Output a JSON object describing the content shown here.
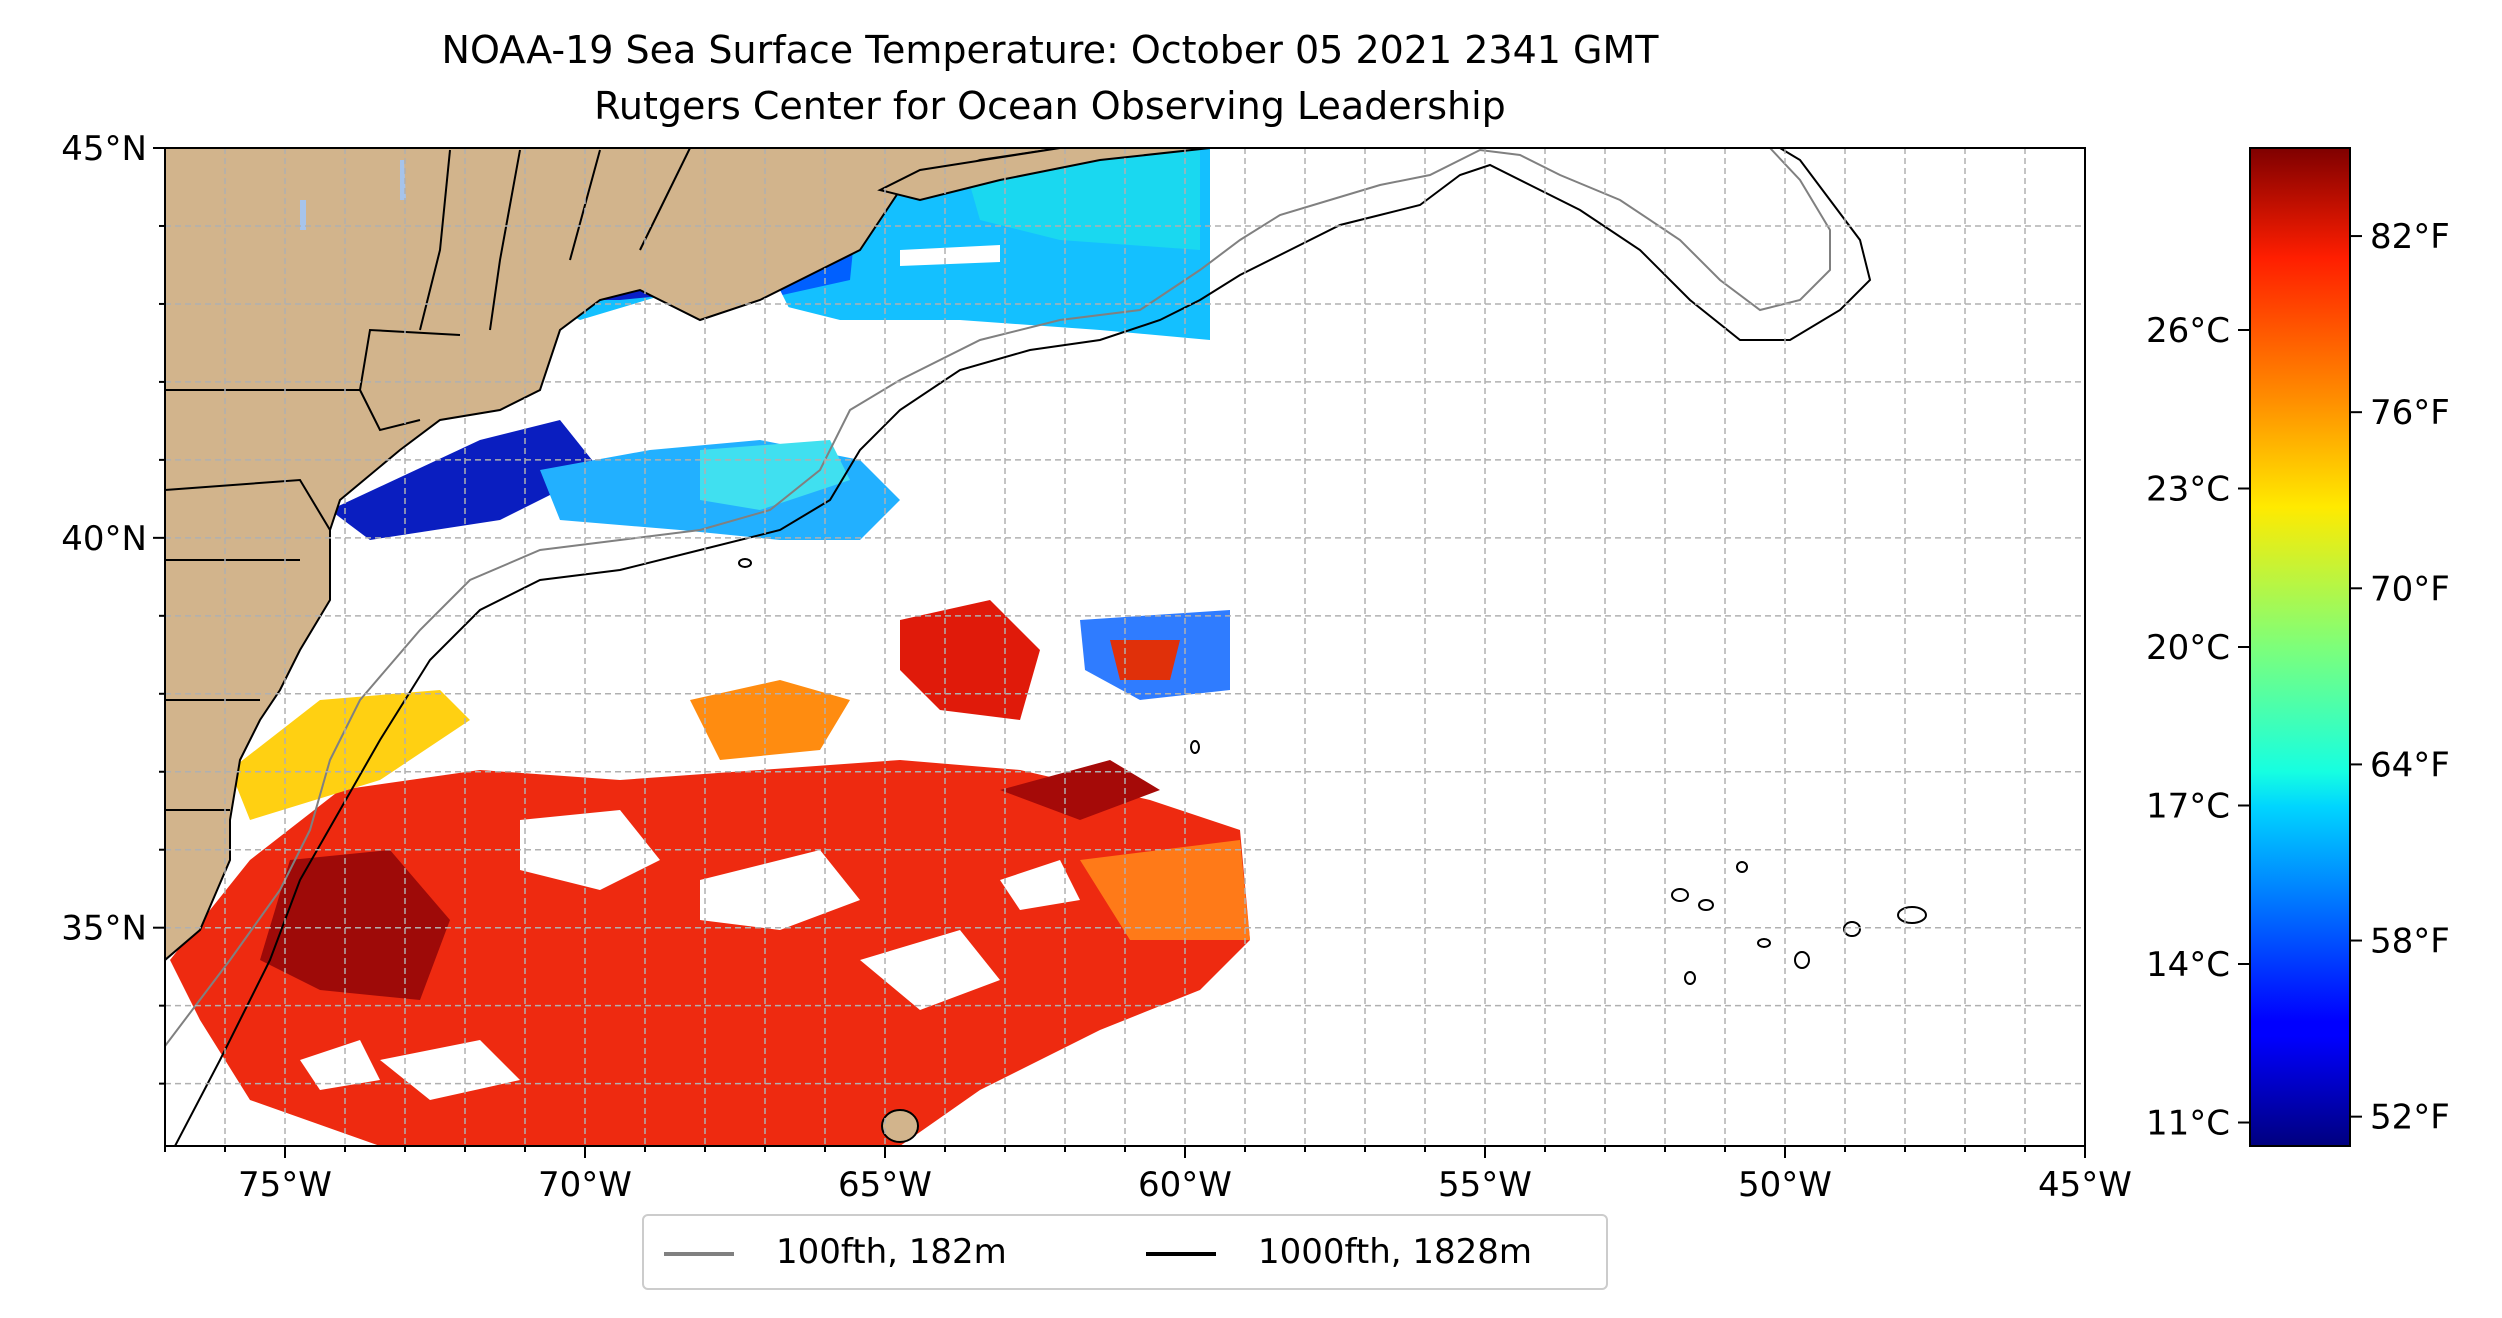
{
  "title": {
    "line1": "NOAA-19 Sea Surface Temperature: October 05 2021 2341 GMT",
    "line2": "Rutgers Center for Ocean Observing Leadership"
  },
  "map": {
    "lon_range": [
      -77,
      -45
    ],
    "lat_range": [
      32.2,
      45
    ],
    "lon_ticks": [
      {
        "value": -75,
        "label": "75°W"
      },
      {
        "value": -70,
        "label": "70°W"
      },
      {
        "value": -65,
        "label": "65°W"
      },
      {
        "value": -60,
        "label": "60°W"
      },
      {
        "value": -55,
        "label": "55°W"
      },
      {
        "value": -50,
        "label": "50°W"
      },
      {
        "value": -45,
        "label": "45°W"
      }
    ],
    "lat_ticks": [
      {
        "value": 45,
        "label": "45°N"
      },
      {
        "value": 40,
        "label": "40°N"
      },
      {
        "value": 35,
        "label": "35°N"
      }
    ],
    "grid": true,
    "land_color": "#d2b48c",
    "lake_color": "#a6c4ec"
  },
  "legend": {
    "placement": "bottom-center",
    "items": [
      {
        "label": "100fth, 182m",
        "color": "#808080"
      },
      {
        "label": "1000fth, 1828m",
        "color": "#000000"
      }
    ]
  },
  "colorbar": {
    "colormap": "jet",
    "range_f": [
      51,
      85
    ],
    "celsius_ticks": [
      {
        "value": 26,
        "label": "26°C"
      },
      {
        "value": 23,
        "label": "23°C"
      },
      {
        "value": 20,
        "label": "20°C"
      },
      {
        "value": 17,
        "label": "17°C"
      },
      {
        "value": 14,
        "label": "14°C"
      },
      {
        "value": 11,
        "label": "11°C"
      }
    ],
    "fahrenheit_ticks": [
      {
        "value": 82,
        "label": "82°F"
      },
      {
        "value": 76,
        "label": "76°F"
      },
      {
        "value": 70,
        "label": "70°F"
      },
      {
        "value": 64,
        "label": "64°F"
      },
      {
        "value": 58,
        "label": "58°F"
      },
      {
        "value": 52,
        "label": "52°F"
      }
    ]
  }
}
